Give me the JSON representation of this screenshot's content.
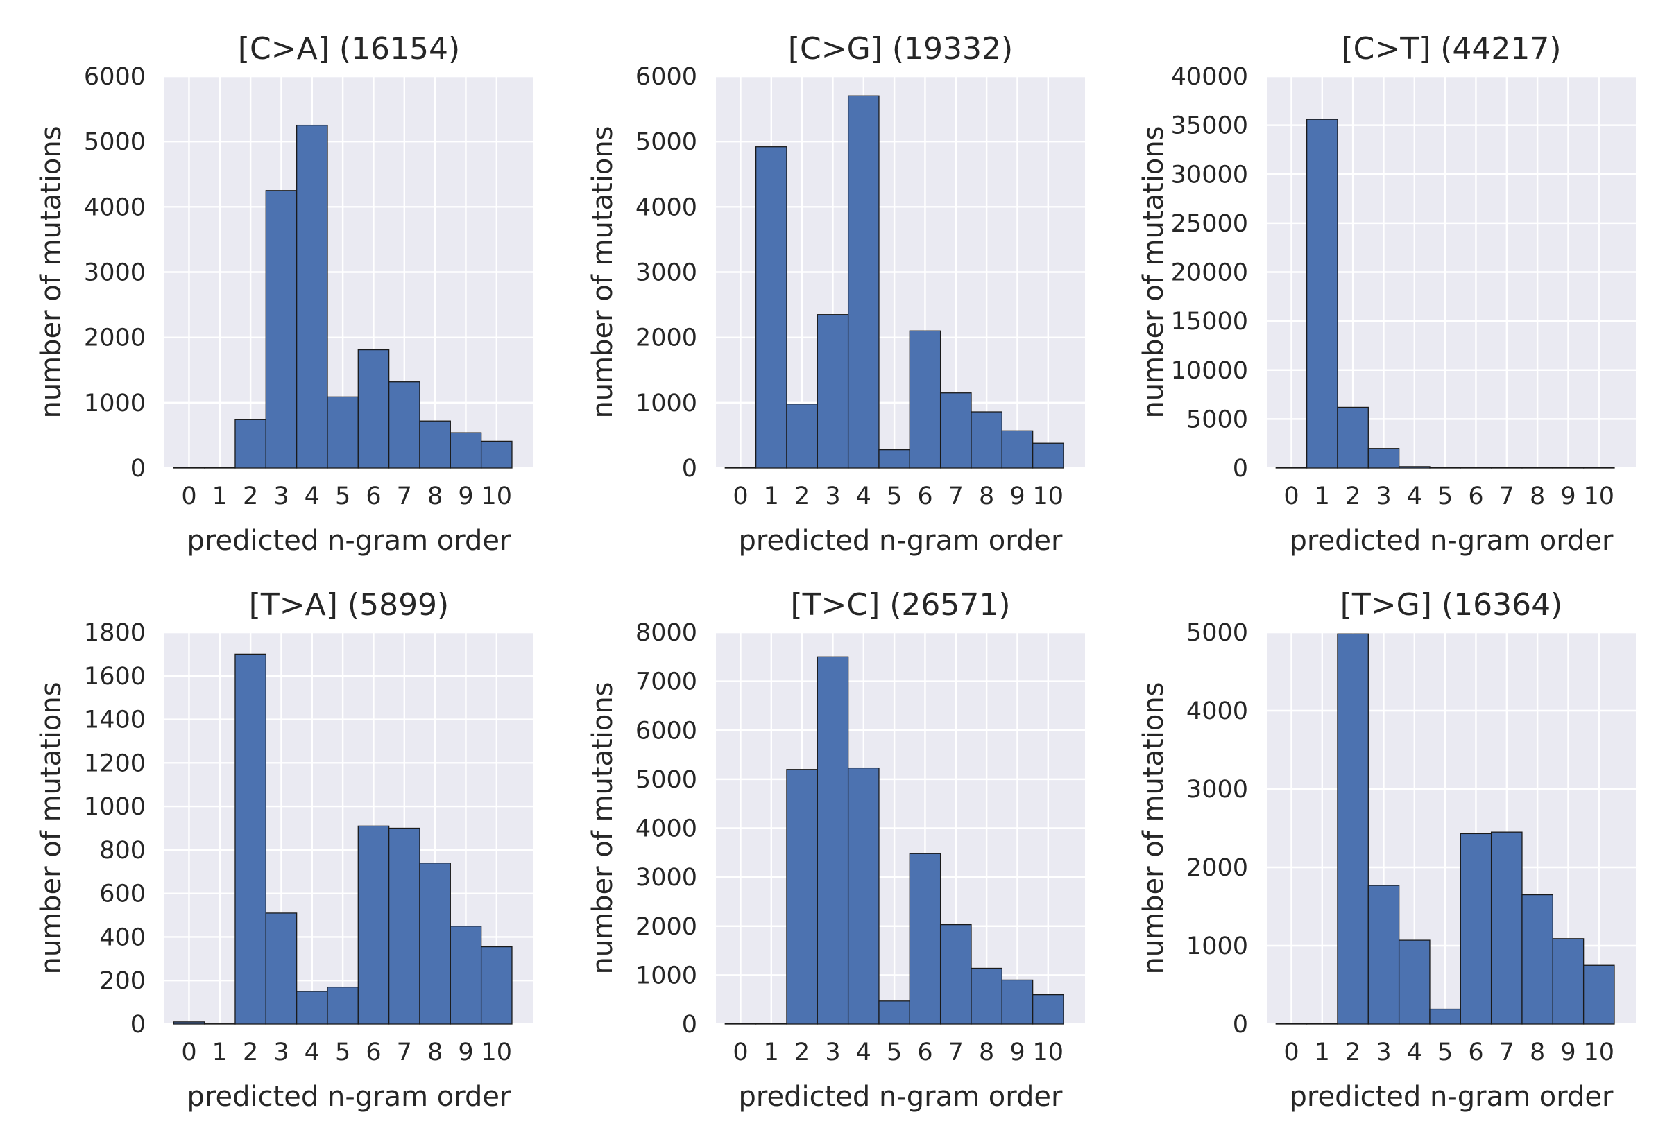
{
  "style": {
    "axes_bg": "#eaeaf2",
    "grid": "#ffffff",
    "bar_fill": "#4c72b0",
    "bar_edge": "#1a1a1a"
  },
  "chart_data": [
    {
      "type": "bar",
      "title": "[C>A] (16154)",
      "xlabel": "predicted n-gram order",
      "ylabel": "number of mutations",
      "categories": [
        "0",
        "1",
        "2",
        "3",
        "4",
        "5",
        "6",
        "7",
        "8",
        "9",
        "10"
      ],
      "values": [
        8,
        8,
        740,
        4250,
        5250,
        1090,
        1810,
        1320,
        720,
        540,
        410
      ],
      "ylim": [
        0,
        6000
      ],
      "yticks": [
        0,
        1000,
        2000,
        3000,
        4000,
        5000,
        6000
      ],
      "grid": true
    },
    {
      "type": "bar",
      "title": "[C>G] (19332)",
      "xlabel": "predicted n-gram order",
      "ylabel": "number of mutations",
      "categories": [
        "0",
        "1",
        "2",
        "3",
        "4",
        "5",
        "6",
        "7",
        "8",
        "9",
        "10"
      ],
      "values": [
        8,
        4920,
        980,
        2350,
        5700,
        280,
        2100,
        1150,
        860,
        570,
        380
      ],
      "ylim": [
        0,
        6000
      ],
      "yticks": [
        0,
        1000,
        2000,
        3000,
        4000,
        5000,
        6000
      ],
      "grid": true
    },
    {
      "type": "bar",
      "title": "[C>T] (44217)",
      "xlabel": "predicted n-gram order",
      "ylabel": "number of mutations",
      "categories": [
        "0",
        "1",
        "2",
        "3",
        "4",
        "5",
        "6",
        "7",
        "8",
        "9",
        "10"
      ],
      "values": [
        40,
        35600,
        6200,
        2000,
        150,
        80,
        60,
        30,
        30,
        30,
        30
      ],
      "ylim": [
        0,
        40000
      ],
      "yticks": [
        0,
        5000,
        10000,
        15000,
        20000,
        25000,
        30000,
        35000,
        40000
      ],
      "grid": true
    },
    {
      "type": "bar",
      "title": "[T>A] (5899)",
      "xlabel": "predicted n-gram order",
      "ylabel": "number of mutations",
      "categories": [
        "0",
        "1",
        "2",
        "3",
        "4",
        "5",
        "6",
        "7",
        "8",
        "9",
        "10"
      ],
      "values": [
        10,
        1,
        1700,
        510,
        150,
        170,
        910,
        900,
        740,
        450,
        355
      ],
      "ylim": [
        0,
        1800
      ],
      "yticks": [
        0,
        200,
        400,
        600,
        800,
        1000,
        1200,
        1400,
        1600,
        1800
      ],
      "grid": true
    },
    {
      "type": "bar",
      "title": "[T>C] (26571)",
      "xlabel": "predicted n-gram order",
      "ylabel": "number of mutations",
      "categories": [
        "0",
        "1",
        "2",
        "3",
        "4",
        "5",
        "6",
        "7",
        "8",
        "9",
        "10"
      ],
      "values": [
        8,
        8,
        5200,
        7500,
        5230,
        470,
        3480,
        2030,
        1140,
        900,
        600
      ],
      "ylim": [
        0,
        8000
      ],
      "yticks": [
        0,
        1000,
        2000,
        3000,
        4000,
        5000,
        6000,
        7000,
        8000
      ],
      "grid": true
    },
    {
      "type": "bar",
      "title": "[T>G] (16364)",
      "xlabel": "predicted n-gram order",
      "ylabel": "number of mutations",
      "categories": [
        "0",
        "1",
        "2",
        "3",
        "4",
        "5",
        "6",
        "7",
        "8",
        "9",
        "10"
      ],
      "values": [
        8,
        8,
        4980,
        1770,
        1070,
        190,
        2430,
        2450,
        1650,
        1090,
        750
      ],
      "ylim": [
        0,
        5000
      ],
      "yticks": [
        0,
        1000,
        2000,
        3000,
        4000,
        5000
      ],
      "grid": true
    }
  ]
}
